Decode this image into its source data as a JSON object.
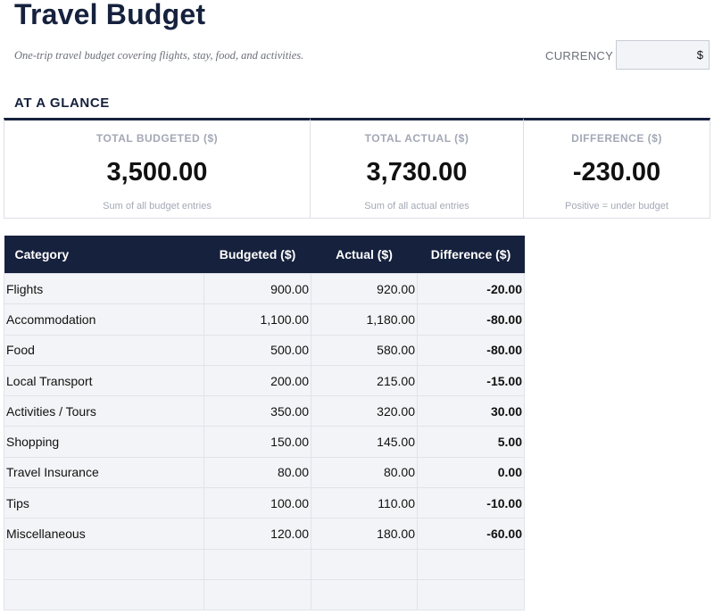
{
  "header": {
    "title": "Travel Budget",
    "subtitle": "One-trip travel budget covering flights, stay, food, and activities.",
    "currency_label": "CURRENCY",
    "currency_value": "$"
  },
  "glance": {
    "heading": "AT A GLANCE",
    "cards": [
      {
        "label": "TOTAL BUDGETED ($)",
        "value": "3,500.00",
        "note": "Sum of all budget entries"
      },
      {
        "label": "TOTAL ACTUAL ($)",
        "value": "3,730.00",
        "note": "Sum of all actual entries"
      },
      {
        "label": "DIFFERENCE ($)",
        "value": "-230.00",
        "note": "Positive = under budget"
      }
    ]
  },
  "table": {
    "headers": [
      "Category",
      "Budgeted ($)",
      "Actual ($)",
      "Difference ($)"
    ],
    "rows": [
      [
        "Flights",
        "900.00",
        "920.00",
        "-20.00"
      ],
      [
        "Accommodation",
        "1,100.00",
        "1,180.00",
        "-80.00"
      ],
      [
        "Food",
        "500.00",
        "580.00",
        "-80.00"
      ],
      [
        "Local Transport",
        "200.00",
        "215.00",
        "-15.00"
      ],
      [
        "Activities / Tours",
        "350.00",
        "320.00",
        "30.00"
      ],
      [
        "Shopping",
        "150.00",
        "145.00",
        "5.00"
      ],
      [
        "Travel Insurance",
        "80.00",
        "80.00",
        "0.00"
      ],
      [
        "Tips",
        "100.00",
        "110.00",
        "-10.00"
      ],
      [
        "Miscellaneous",
        "120.00",
        "180.00",
        "-60.00"
      ],
      [
        "",
        "",
        "",
        ""
      ],
      [
        "",
        "",
        "",
        ""
      ]
    ]
  }
}
